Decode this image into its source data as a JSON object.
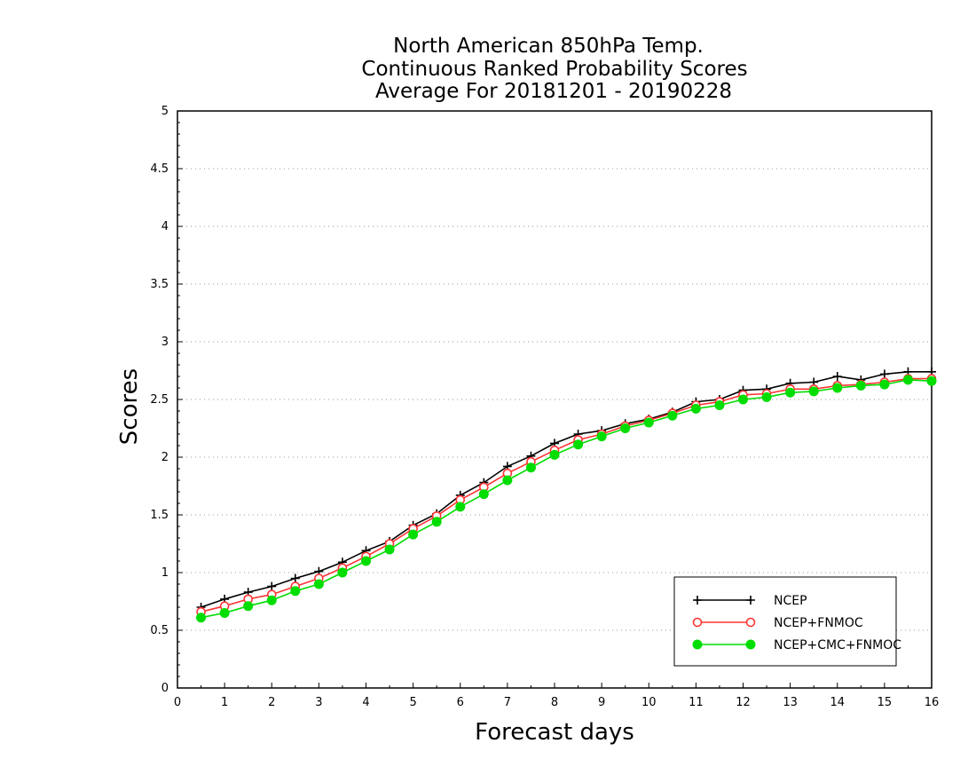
{
  "chart_data": {
    "type": "line",
    "title_lines": [
      "North American 850hPa Temp.",
      "Continuous Ranked Probability Scores",
      "Average For 20181201 - 20190228"
    ],
    "xlabel": "Forecast days",
    "ylabel": "Scores",
    "xlim": [
      0,
      16
    ],
    "ylim": [
      0,
      5
    ],
    "x_ticks": [
      "0",
      "1",
      "2",
      "3",
      "4",
      "5",
      "6",
      "7",
      "8",
      "9",
      "10",
      "11",
      "12",
      "13",
      "14",
      "15",
      "16"
    ],
    "y_ticks": [
      "0",
      "0.5",
      "1",
      "1.5",
      "2",
      "2.5",
      "3",
      "3.5",
      "4",
      "4.5",
      "5"
    ],
    "grid": "horizontal dotted",
    "legend_position": "bottom-right",
    "x": [
      0.5,
      1,
      1.5,
      2,
      2.5,
      3,
      3.5,
      4,
      4.5,
      5,
      5.5,
      6,
      6.5,
      7,
      7.5,
      8,
      8.5,
      9,
      9.5,
      10,
      10.5,
      11,
      11.5,
      12,
      12.5,
      13,
      13.5,
      14,
      14.5,
      15,
      15.5,
      16
    ],
    "series": [
      {
        "name": "NCEP",
        "color": "#000000",
        "marker": "plus",
        "values": [
          0.7,
          0.77,
          0.83,
          0.88,
          0.95,
          1.01,
          1.09,
          1.19,
          1.27,
          1.41,
          1.51,
          1.67,
          1.78,
          1.92,
          2.01,
          2.12,
          2.2,
          2.23,
          2.29,
          2.33,
          2.39,
          2.48,
          2.5,
          2.58,
          2.59,
          2.64,
          2.65,
          2.7,
          2.67,
          2.72,
          2.74,
          2.74
        ]
      },
      {
        "name": "NCEP+FNMOC",
        "color": "#ff3333",
        "marker": "open-circle",
        "values": [
          0.66,
          0.71,
          0.77,
          0.81,
          0.88,
          0.95,
          1.04,
          1.14,
          1.25,
          1.38,
          1.49,
          1.63,
          1.74,
          1.86,
          1.96,
          2.06,
          2.15,
          2.2,
          2.27,
          2.32,
          2.38,
          2.45,
          2.48,
          2.54,
          2.55,
          2.59,
          2.59,
          2.62,
          2.63,
          2.65,
          2.68,
          2.68
        ]
      },
      {
        "name": "NCEP+CMC+FNMOC",
        "color": "#00dd00",
        "marker": "filled-circle",
        "values": [
          0.61,
          0.65,
          0.71,
          0.76,
          0.84,
          0.9,
          1.0,
          1.1,
          1.2,
          1.33,
          1.44,
          1.57,
          1.68,
          1.8,
          1.91,
          2.02,
          2.11,
          2.18,
          2.25,
          2.3,
          2.36,
          2.42,
          2.45,
          2.5,
          2.52,
          2.56,
          2.57,
          2.6,
          2.62,
          2.63,
          2.67,
          2.66
        ]
      }
    ]
  }
}
